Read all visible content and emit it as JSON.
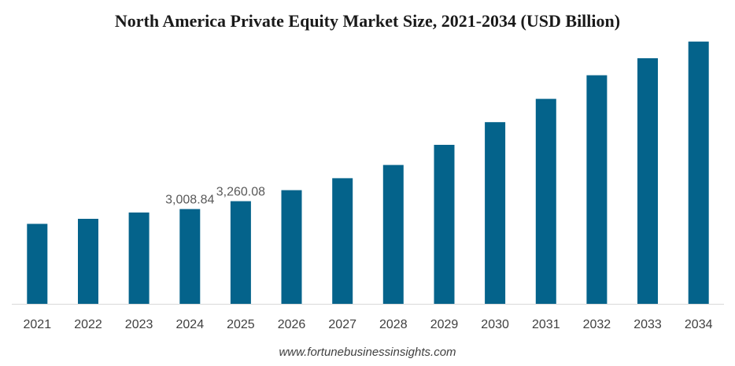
{
  "chart_data": {
    "type": "bar",
    "title": "North America Private Equity Market Size, 2021-2034 (USD Billion)",
    "xlabel": "",
    "ylabel": "",
    "categories": [
      "2021",
      "2022",
      "2023",
      "2024",
      "2025",
      "2026",
      "2027",
      "2028",
      "2029",
      "2030",
      "2031",
      "2032",
      "2033",
      "2034"
    ],
    "values": [
      2540,
      2700,
      2900,
      3008.84,
      3260.08,
      3610,
      3990,
      4410,
      5050,
      5770,
      6510,
      7260,
      7800,
      8330
    ],
    "data_labels": [
      {
        "category": "2024",
        "text": "3,008.84"
      },
      {
        "category": "2025",
        "text": "3,260.08"
      }
    ],
    "ylim": [
      0,
      8400
    ],
    "grid": false,
    "legend": "none",
    "bar_color": "#04638b",
    "axis_color": "#d9d9d9"
  },
  "source": "www.fortunebusinessinsights.com"
}
